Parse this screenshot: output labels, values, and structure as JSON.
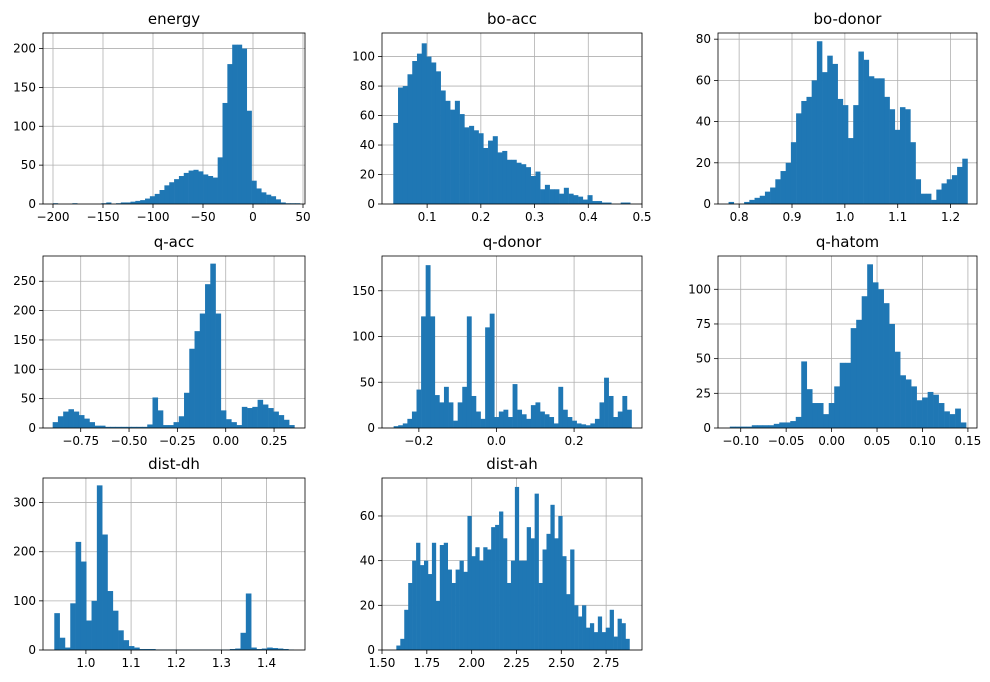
{
  "chart_data": [
    {
      "type": "bar",
      "title": "energy",
      "bin_edges_range": [
        -200,
        47
      ],
      "counts": [
        1,
        0,
        0,
        0,
        1,
        0,
        0,
        0,
        0,
        0,
        1,
        2,
        0,
        1,
        2,
        2,
        3,
        4,
        5,
        7,
        10,
        13,
        18,
        24,
        28,
        32,
        36,
        40,
        43,
        44,
        42,
        38,
        36,
        34,
        60,
        130,
        180,
        205,
        205,
        200,
        120,
        30,
        20,
        15,
        12,
        10,
        6,
        2,
        1,
        1,
        1
      ],
      "xlim": [
        -210,
        52
      ],
      "ylim": [
        0,
        220
      ],
      "xticks": [
        -200,
        -150,
        -100,
        -50,
        0,
        50
      ],
      "xtick_labels": [
        "−200",
        "−150",
        "−100",
        "−50",
        "0",
        "50"
      ],
      "yticks": [
        0,
        50,
        100,
        150,
        200
      ],
      "ytick_labels": [
        "0",
        "50",
        "100",
        "150",
        "200"
      ],
      "grid": true
    },
    {
      "type": "bar",
      "title": "bo-acc",
      "bin_edges_range": [
        0.037,
        0.478
      ],
      "counts": [
        55,
        79,
        80,
        88,
        97,
        102,
        109,
        100,
        96,
        90,
        77,
        70,
        64,
        70,
        61,
        52,
        53,
        50,
        48,
        38,
        43,
        46,
        35,
        36,
        30,
        30,
        28,
        27,
        25,
        19,
        22,
        10,
        13,
        10,
        10,
        7,
        11,
        7,
        6,
        5,
        3,
        6,
        2,
        2,
        1,
        1,
        0,
        0,
        1,
        1
      ],
      "xlim": [
        0.016,
        0.5
      ],
      "ylim": [
        0,
        116
      ],
      "xticks": [
        0.1,
        0.2,
        0.3,
        0.4,
        0.5
      ],
      "xtick_labels": [
        "0.1",
        "0.2",
        "0.3",
        "0.4",
        "0.5"
      ],
      "yticks": [
        0,
        20,
        40,
        60,
        80,
        100
      ],
      "ytick_labels": [
        "0",
        "20",
        "40",
        "60",
        "80",
        "100"
      ],
      "grid": true
    },
    {
      "type": "bar",
      "title": "bo-donor",
      "bin_edges_range": [
        0.78,
        1.232
      ],
      "counts": [
        1,
        0,
        0,
        1,
        2,
        3,
        4,
        6,
        8,
        12,
        16,
        20,
        30,
        44,
        50,
        52,
        60,
        79,
        64,
        72,
        68,
        51,
        48,
        32,
        48,
        74,
        70,
        62,
        61,
        61,
        52,
        46,
        36,
        47,
        46,
        30,
        12,
        5,
        5,
        2,
        7,
        10,
        12,
        14,
        18,
        22
      ],
      "xlim": [
        0.76,
        1.25
      ],
      "ylim": [
        0,
        83
      ],
      "xticks": [
        0.8,
        0.9,
        1.0,
        1.1,
        1.2
      ],
      "xtick_labels": [
        "0.8",
        "0.9",
        "1.0",
        "1.1",
        "1.2"
      ],
      "yticks": [
        0,
        20,
        40,
        60,
        80
      ],
      "ytick_labels": [
        "0",
        "20",
        "40",
        "60",
        "80"
      ],
      "grid": true
    },
    {
      "type": "bar",
      "title": "q-acc",
      "bin_edges_range": [
        -0.895,
        0.355
      ],
      "counts": [
        10,
        20,
        28,
        32,
        28,
        22,
        16,
        10,
        4,
        4,
        2,
        2,
        2,
        2,
        2,
        2,
        2,
        2,
        6,
        52,
        30,
        5,
        5,
        10,
        20,
        60,
        135,
        165,
        195,
        245,
        280,
        195,
        30,
        15,
        10,
        5,
        36,
        34,
        36,
        48,
        40,
        34,
        28,
        22,
        14,
        5
      ],
      "xlim": [
        -0.945,
        0.41
      ],
      "ylim": [
        0,
        293
      ],
      "xticks": [
        -0.75,
        -0.5,
        -0.25,
        0.0,
        0.25
      ],
      "xtick_labels": [
        "−0.75",
        "−0.50",
        "−0.25",
        "0.00",
        "0.25"
      ],
      "yticks": [
        0,
        50,
        100,
        150,
        200,
        250
      ],
      "ytick_labels": [
        "0",
        "50",
        "100",
        "150",
        "200",
        "250"
      ],
      "grid": true
    },
    {
      "type": "bar",
      "title": "q-donor",
      "bin_edges_range": [
        -0.265,
        0.348
      ],
      "counts": [
        2,
        3,
        5,
        10,
        18,
        42,
        122,
        178,
        122,
        36,
        28,
        45,
        28,
        8,
        28,
        45,
        122,
        35,
        18,
        10,
        110,
        125,
        12,
        18,
        20,
        12,
        48,
        20,
        15,
        10,
        25,
        28,
        18,
        15,
        12,
        5,
        45,
        20,
        12,
        8,
        5,
        4,
        3,
        5,
        10,
        28,
        55,
        35,
        12,
        18,
        35,
        20
      ],
      "xlim": [
        -0.295,
        0.375
      ],
      "ylim": [
        0,
        188
      ],
      "xticks": [
        -0.2,
        0.0,
        0.2
      ],
      "xtick_labels": [
        "−0.2",
        "0.0",
        "0.2"
      ],
      "yticks": [
        0,
        50,
        100,
        150
      ],
      "ytick_labels": [
        "0",
        "50",
        "100",
        "150"
      ],
      "grid": true
    },
    {
      "type": "bar",
      "title": "q-hatom",
      "bin_edges_range": [
        -0.112,
        0.148
      ],
      "counts": [
        1,
        1,
        1,
        1,
        2,
        2,
        2,
        2,
        3,
        4,
        4,
        5,
        8,
        48,
        28,
        18,
        18,
        10,
        18,
        30,
        47,
        47,
        72,
        78,
        95,
        118,
        105,
        100,
        90,
        75,
        55,
        38,
        35,
        30,
        20,
        22,
        26,
        24,
        18,
        12,
        10,
        14,
        4
      ],
      "xlim": [
        -0.125,
        0.16
      ],
      "ylim": [
        0,
        124
      ],
      "xticks": [
        -0.1,
        -0.05,
        0.0,
        0.05,
        0.1,
        0.15
      ],
      "xtick_labels": [
        "−0.10",
        "−0.05",
        "0.00",
        "0.05",
        "0.10",
        "0.15"
      ],
      "yticks": [
        0,
        25,
        50,
        75,
        100
      ],
      "ytick_labels": [
        "0",
        "25",
        "50",
        "75",
        "100"
      ],
      "grid": true
    },
    {
      "type": "bar",
      "title": "dist-dh",
      "bin_edges_range": [
        0.93,
        1.46
      ],
      "counts": [
        75,
        25,
        5,
        95,
        220,
        180,
        60,
        100,
        335,
        235,
        120,
        80,
        40,
        20,
        8,
        5,
        2,
        2,
        2,
        1,
        1,
        1,
        1,
        1,
        1,
        1,
        1,
        1,
        1,
        1,
        1,
        1,
        1,
        2,
        3,
        35,
        115,
        5,
        2,
        3,
        5,
        4,
        3,
        2,
        1
      ],
      "xlim": [
        0.905,
        1.485
      ],
      "ylim": [
        0,
        350
      ],
      "xticks": [
        1.0,
        1.1,
        1.2,
        1.3,
        1.4
      ],
      "xtick_labels": [
        "1.0",
        "1.1",
        "1.2",
        "1.3",
        "1.4"
      ],
      "yticks": [
        0,
        100,
        200,
        300
      ],
      "ytick_labels": [
        "0",
        "100",
        "200",
        "300"
      ],
      "grid": true
    },
    {
      "type": "bar",
      "title": "dist-ah",
      "bin_edges_range": [
        1.58,
        2.88
      ],
      "counts": [
        2,
        5,
        18,
        30,
        40,
        48,
        38,
        40,
        34,
        48,
        22,
        47,
        48,
        36,
        30,
        36,
        40,
        35,
        60,
        42,
        46,
        40,
        46,
        45,
        55,
        56,
        62,
        50,
        30,
        40,
        73,
        40,
        40,
        55,
        50,
        70,
        30,
        45,
        52,
        65,
        50,
        60,
        42,
        25,
        45,
        20,
        15,
        20,
        10,
        12,
        8,
        15,
        8,
        10,
        18,
        6,
        14,
        12,
        5
      ],
      "xlim": [
        1.5,
        2.95
      ],
      "ylim": [
        0,
        77
      ],
      "xticks": [
        1.5,
        1.75,
        2.0,
        2.25,
        2.5,
        2.75
      ],
      "xtick_labels": [
        "1.50",
        "1.75",
        "2.00",
        "2.25",
        "2.50",
        "2.75"
      ],
      "yticks": [
        0,
        20,
        40,
        60
      ],
      "ytick_labels": [
        "0",
        "20",
        "40",
        "60"
      ],
      "grid": true
    }
  ],
  "colors": {
    "bar": "#1f77b4",
    "grid": "#b0b0b0",
    "frame": "#000000",
    "background": "#ffffff"
  }
}
